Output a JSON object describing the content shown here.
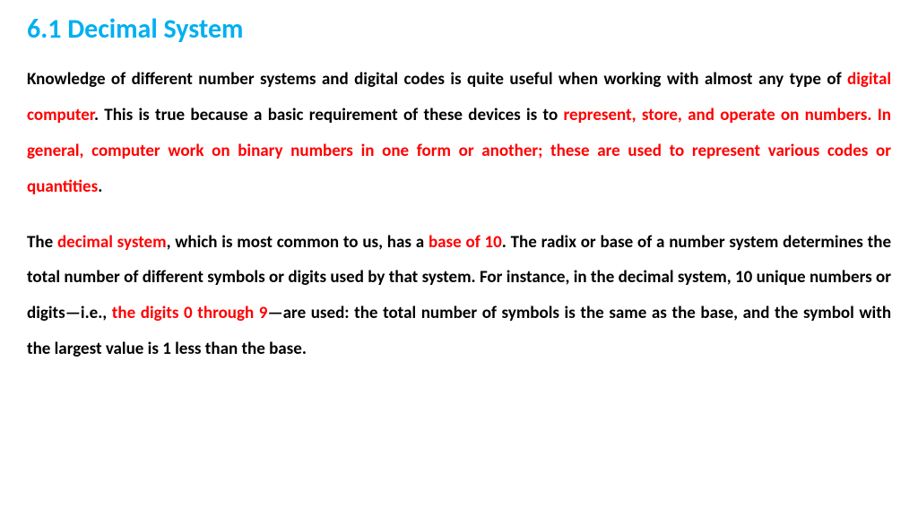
{
  "heading": "6.1 Decimal System",
  "p1_s1": "Knowledge of different number systems and digital codes is quite useful when working with almost any type of ",
  "p1_s2": "digital computer",
  "p1_s3": ". This is true because a basic requirement of these devices is to ",
  "p1_s4": "represent, store, and operate on numbers",
  "p1_s5": ". ",
  "p1_s6": "In general, computer work on binary numbers in one form or another; these are used to represent various codes or quantities",
  "p1_s7": ".",
  "p2_s1": "The ",
  "p2_s2": "decimal system",
  "p2_s3": ", which is most common to us, has a ",
  "p2_s4": "base of 10",
  "p2_s5": ". The radix or base of a number system determines the total number of different symbols or digits used by that system. For instance, in the decimal system, 10 unique numbers or digits—i.e., ",
  "p2_s6": "the digits 0 through 9",
  "p2_s7": "—are used: the total number of symbols is the same as the base, and the symbol with the largest value is 1 less than the base.",
  "colors": {
    "heading": "#00b0f0",
    "body": "#000000",
    "highlight": "#ff0000",
    "background": "#ffffff"
  },
  "typography": {
    "heading_fontsize": 30,
    "body_fontsize": 19,
    "font_weight": "bold",
    "line_height": 2.1,
    "text_align": "justify",
    "font_family": "Calibri"
  }
}
